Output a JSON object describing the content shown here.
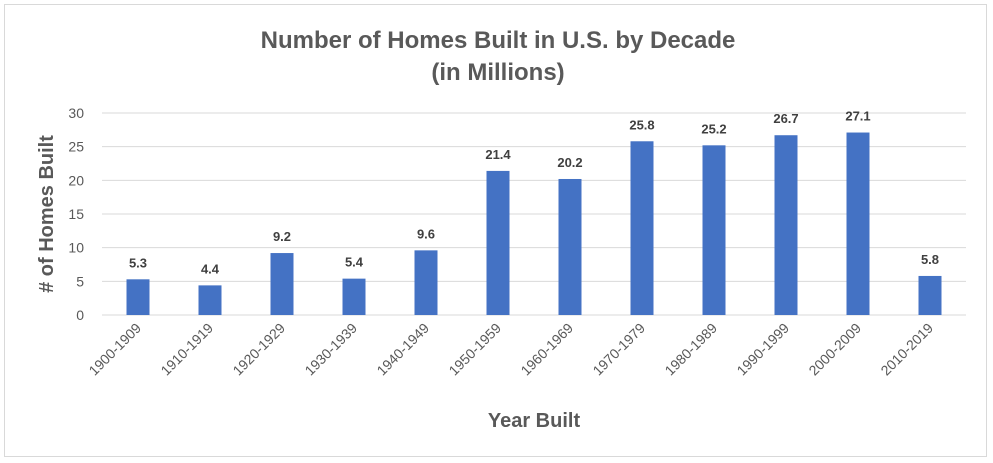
{
  "chart_data": {
    "type": "bar",
    "title": "Number of Homes Built in U.S. by Decade",
    "subtitle": "(in Millions)",
    "xlabel": "Year Built",
    "ylabel": "# of Homes Built",
    "categories": [
      "1900-1909",
      "1910-1919",
      "1920-1929",
      "1930-1939",
      "1940-1949",
      "1950-1959",
      "1960-1969",
      "1970-1979",
      "1980-1989",
      "1990-1999",
      "2000-2009",
      "2010-2019"
    ],
    "values": [
      5.3,
      4.4,
      9.2,
      5.4,
      9.6,
      21.4,
      20.2,
      25.8,
      25.2,
      26.7,
      27.1,
      5.8
    ],
    "data_labels": [
      "5.3",
      "4.4",
      "9.2",
      "5.4",
      "9.6",
      "21.4",
      "20.2",
      "25.8",
      "25.2",
      "26.7",
      "27.1",
      "5.8"
    ],
    "ylim": [
      0,
      30
    ],
    "yticks": [
      "0",
      "5",
      "10",
      "15",
      "20",
      "25",
      "30"
    ],
    "grid": true,
    "bar_color": "#4472C4"
  }
}
